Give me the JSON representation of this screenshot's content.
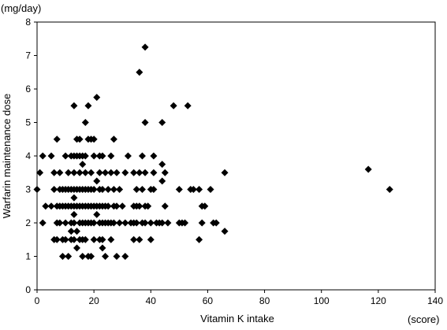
{
  "chart_data": {
    "type": "scatter",
    "xlabel": "Vitamin K intake",
    "ylabel": "Warfarin maintenance dose",
    "x_unit": "(score)",
    "y_unit": "(mg/day)",
    "xlim": [
      0,
      140
    ],
    "ylim": [
      0,
      8
    ],
    "x_ticks": [
      "0",
      "20",
      "40",
      "60",
      "80",
      "100",
      "120",
      "140"
    ],
    "y_ticks": [
      "0",
      "1",
      "2",
      "3",
      "4",
      "5",
      "6",
      "7",
      "8"
    ],
    "grid": false,
    "legend": "none",
    "marker": "diamond",
    "marker_color": "#000000",
    "points": [
      [
        0,
        3
      ],
      [
        1,
        3.5
      ],
      [
        2,
        4
      ],
      [
        2,
        2
      ],
      [
        3,
        2.5
      ],
      [
        5,
        4
      ],
      [
        5,
        2.5
      ],
      [
        6,
        3
      ],
      [
        6,
        1.5
      ],
      [
        6,
        3.5
      ],
      [
        7,
        4.5
      ],
      [
        7,
        2.5
      ],
      [
        7,
        2
      ],
      [
        7,
        1.5
      ],
      [
        8,
        3
      ],
      [
        8,
        3.5
      ],
      [
        8,
        2.5
      ],
      [
        8,
        2
      ],
      [
        9,
        3
      ],
      [
        9,
        2.5
      ],
      [
        9,
        1.5
      ],
      [
        9,
        1
      ],
      [
        10,
        4
      ],
      [
        10,
        3
      ],
      [
        10,
        2.5
      ],
      [
        10,
        2
      ],
      [
        10,
        1.5
      ],
      [
        11,
        3.5
      ],
      [
        11,
        3
      ],
      [
        11,
        2.5
      ],
      [
        11,
        1
      ],
      [
        12,
        4
      ],
      [
        12,
        3
      ],
      [
        12,
        2.5
      ],
      [
        12,
        2
      ],
      [
        12,
        1.5
      ],
      [
        12,
        1.75
      ],
      [
        13,
        5.5
      ],
      [
        13,
        4
      ],
      [
        13,
        3.5
      ],
      [
        13,
        3
      ],
      [
        13,
        2.75
      ],
      [
        13,
        2.5
      ],
      [
        13,
        2.25
      ],
      [
        13,
        2
      ],
      [
        13,
        1.5
      ],
      [
        14,
        4.5
      ],
      [
        14,
        4
      ],
      [
        14,
        3
      ],
      [
        14,
        2.5
      ],
      [
        14,
        1.75
      ],
      [
        14,
        1.25
      ],
      [
        15,
        4.5
      ],
      [
        15,
        4
      ],
      [
        15,
        3.5
      ],
      [
        15,
        3
      ],
      [
        15,
        2.5
      ],
      [
        15,
        2
      ],
      [
        15,
        1.5
      ],
      [
        16,
        4
      ],
      [
        16,
        3.75
      ],
      [
        16,
        3
      ],
      [
        16,
        2.5
      ],
      [
        16,
        2
      ],
      [
        16,
        1.5
      ],
      [
        16,
        1
      ],
      [
        17,
        5
      ],
      [
        17,
        4
      ],
      [
        17,
        3.5
      ],
      [
        17,
        3
      ],
      [
        17,
        2.5
      ],
      [
        17,
        2
      ],
      [
        17,
        1.5
      ],
      [
        18,
        5.5
      ],
      [
        18,
        4.5
      ],
      [
        18,
        3
      ],
      [
        18,
        2.5
      ],
      [
        18,
        2
      ],
      [
        18,
        1
      ],
      [
        19,
        4.5
      ],
      [
        19,
        3.5
      ],
      [
        19,
        3
      ],
      [
        19,
        2.5
      ],
      [
        19,
        2
      ],
      [
        19,
        1
      ],
      [
        20,
        4.5
      ],
      [
        20,
        4
      ],
      [
        20,
        3
      ],
      [
        20,
        2.5
      ],
      [
        20,
        2
      ],
      [
        20,
        1.5
      ],
      [
        21,
        5.75
      ],
      [
        21,
        3.25
      ],
      [
        21,
        2.5
      ],
      [
        21,
        2.25
      ],
      [
        22,
        4
      ],
      [
        22,
        3.5
      ],
      [
        22,
        3
      ],
      [
        22,
        2.5
      ],
      [
        22,
        2
      ],
      [
        22,
        1.5
      ],
      [
        23,
        4
      ],
      [
        23,
        3
      ],
      [
        23,
        2.5
      ],
      [
        23,
        2
      ],
      [
        23,
        1.5
      ],
      [
        23,
        1.25
      ],
      [
        24,
        3.5
      ],
      [
        24,
        2.5
      ],
      [
        24,
        2
      ],
      [
        24,
        1
      ],
      [
        25,
        3
      ],
      [
        25,
        2.5
      ],
      [
        25,
        2
      ],
      [
        26,
        4
      ],
      [
        26,
        3.5
      ],
      [
        26,
        2
      ],
      [
        26,
        1.5
      ],
      [
        27,
        4.5
      ],
      [
        27,
        3
      ],
      [
        27,
        2.5
      ],
      [
        27,
        2
      ],
      [
        28,
        1
      ],
      [
        28,
        3.5
      ],
      [
        28,
        2.5
      ],
      [
        29,
        2
      ],
      [
        29,
        3
      ],
      [
        30,
        2.5
      ],
      [
        31,
        3.5
      ],
      [
        31,
        2
      ],
      [
        31,
        1
      ],
      [
        32,
        4
      ],
      [
        33,
        2
      ],
      [
        34,
        3.5
      ],
      [
        34,
        2.5
      ],
      [
        34,
        2
      ],
      [
        34,
        1.5
      ],
      [
        35,
        3
      ],
      [
        35,
        2.5
      ],
      [
        35,
        2
      ],
      [
        36,
        6.5
      ],
      [
        36,
        3.5
      ],
      [
        36,
        2.5
      ],
      [
        36,
        1.5
      ],
      [
        37,
        4
      ],
      [
        37,
        3
      ],
      [
        37,
        2
      ],
      [
        38,
        7.25
      ],
      [
        38,
        5
      ],
      [
        38,
        3.5
      ],
      [
        38,
        2.5
      ],
      [
        38,
        2
      ],
      [
        39,
        2.5
      ],
      [
        40,
        3
      ],
      [
        40,
        2
      ],
      [
        40,
        1.5
      ],
      [
        41,
        4
      ],
      [
        41,
        3.5
      ],
      [
        41,
        3
      ],
      [
        42,
        2
      ],
      [
        43,
        2
      ],
      [
        44,
        5
      ],
      [
        44,
        3.75
      ],
      [
        44,
        3.25
      ],
      [
        44,
        2
      ],
      [
        45,
        3.5
      ],
      [
        45,
        2.5
      ],
      [
        46,
        2
      ],
      [
        48,
        5.5
      ],
      [
        50,
        2
      ],
      [
        50,
        3
      ],
      [
        51,
        2
      ],
      [
        52,
        2
      ],
      [
        53,
        5.5
      ],
      [
        54,
        3
      ],
      [
        55,
        3
      ],
      [
        57,
        3
      ],
      [
        57,
        1.5
      ],
      [
        58,
        2.5
      ],
      [
        58,
        2
      ],
      [
        59,
        2.5
      ],
      [
        61,
        3
      ],
      [
        62,
        2
      ],
      [
        63,
        2
      ],
      [
        66,
        3.5
      ],
      [
        66,
        1.75
      ],
      [
        116.5,
        3.6
      ],
      [
        124,
        3
      ]
    ]
  }
}
